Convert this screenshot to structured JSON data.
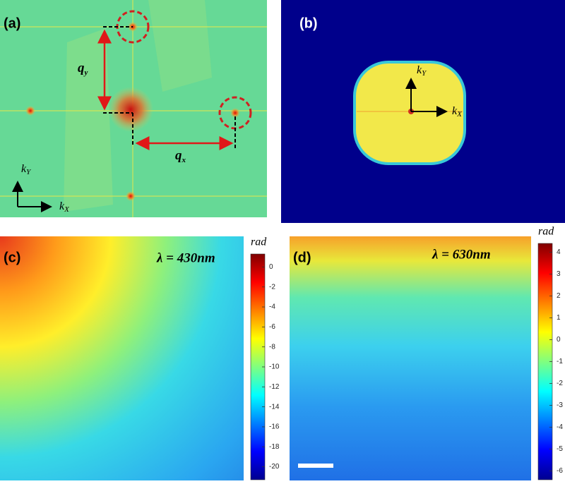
{
  "panels": [
    {
      "label": "(a)",
      "annotations": [
        {
          "symbol": "q",
          "subscript": "y"
        },
        {
          "symbol": "q",
          "subscript": "x"
        },
        {
          "symbol": "k",
          "subscript": "Y"
        },
        {
          "symbol": "k",
          "subscript": "X"
        }
      ]
    },
    {
      "label": "(b)",
      "annotations": [
        {
          "symbol": "k",
          "subscript": "Y"
        },
        {
          "symbol": "k",
          "subscript": "X"
        }
      ]
    },
    {
      "label": "(c)",
      "title": "λ = 430nm",
      "colorbar": {
        "label": "rad",
        "lim": [
          -21.3,
          1.3
        ],
        "ticks": [
          0,
          -2,
          -4,
          -6,
          -8,
          -10,
          -12,
          -14,
          -16,
          -18,
          -20
        ]
      }
    },
    {
      "label": "(d)",
      "title": "λ = 630nm",
      "colorbar": {
        "label": "rad",
        "lim": [
          -6.4,
          4.4
        ],
        "ticks": [
          4,
          3,
          2,
          1,
          0,
          -1,
          -2,
          -3,
          -4,
          -5,
          -6
        ]
      }
    }
  ]
}
